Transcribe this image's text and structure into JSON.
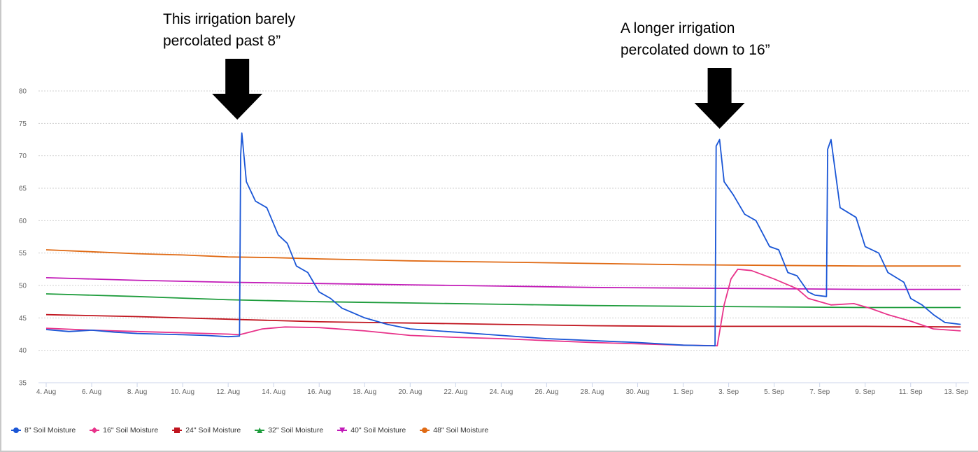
{
  "annotations": [
    {
      "line1": "This irrigation barely",
      "line2": "percolated past 8”"
    },
    {
      "line1": "A longer irrigation",
      "line2": "percolated down to 16”"
    }
  ],
  "chart_data": {
    "type": "line",
    "title": "",
    "xlabel": "",
    "ylabel": "",
    "x_unit": "days since 4. Aug",
    "xlim": [
      -0.3,
      40.3
    ],
    "ylim": [
      35,
      80
    ],
    "yticks": [
      35,
      40,
      45,
      50,
      55,
      60,
      65,
      70,
      75,
      80
    ],
    "xticks": [
      {
        "x": 0,
        "label": "4. Aug"
      },
      {
        "x": 2,
        "label": "6. Aug"
      },
      {
        "x": 4,
        "label": "8. Aug"
      },
      {
        "x": 6,
        "label": "10. Aug"
      },
      {
        "x": 8,
        "label": "12. Aug"
      },
      {
        "x": 10,
        "label": "14. Aug"
      },
      {
        "x": 12,
        "label": "16. Aug"
      },
      {
        "x": 14,
        "label": "18. Aug"
      },
      {
        "x": 16,
        "label": "20. Aug"
      },
      {
        "x": 18,
        "label": "22. Aug"
      },
      {
        "x": 20,
        "label": "24. Aug"
      },
      {
        "x": 22,
        "label": "26. Aug"
      },
      {
        "x": 24,
        "label": "28. Aug"
      },
      {
        "x": 26,
        "label": "30. Aug"
      },
      {
        "x": 28,
        "label": "1. Sep"
      },
      {
        "x": 30,
        "label": "3. Sep"
      },
      {
        "x": 32,
        "label": "5. Sep"
      },
      {
        "x": 34,
        "label": "7. Sep"
      },
      {
        "x": 36,
        "label": "9. Sep"
      },
      {
        "x": 38,
        "label": "11. Sep"
      },
      {
        "x": 40,
        "label": "13. Sep"
      }
    ],
    "grid": true,
    "legend_position": "bottom-left",
    "arrows_at_x": [
      8.4,
      29.6
    ],
    "series": [
      {
        "name": "8\" Soil Moisture",
        "color": "#1a56d6",
        "marker": "circle",
        "x": [
          0,
          1,
          2,
          3,
          4,
          5,
          6,
          7,
          8,
          8.5,
          8.55,
          8.6,
          8.8,
          9.2,
          9.7,
          10.2,
          10.6,
          11,
          11.5,
          12,
          12.5,
          13,
          14,
          15,
          16,
          18,
          20,
          22,
          24,
          26,
          28,
          29.4,
          29.45,
          29.6,
          29.8,
          30.2,
          30.7,
          31.2,
          31.8,
          32.2,
          32.6,
          33,
          33.5,
          33.8,
          34.3,
          34.35,
          34.5,
          34.9,
          35.6,
          36,
          36.6,
          37,
          37.7,
          38,
          38.5,
          39,
          39.5,
          40.2
        ],
        "y": [
          43.2,
          42.9,
          43.1,
          42.8,
          42.6,
          42.5,
          42.4,
          42.3,
          42.1,
          42.2,
          70,
          73.5,
          66,
          63,
          62,
          57.8,
          56.5,
          53,
          52,
          49,
          48,
          46.5,
          45,
          44,
          43.3,
          42.8,
          42.3,
          41.8,
          41.5,
          41.2,
          40.8,
          40.7,
          71.5,
          72.5,
          66,
          64,
          61,
          60,
          56,
          55.5,
          52,
          51.5,
          49,
          48.5,
          48.3,
          71,
          72.5,
          62,
          60.5,
          56,
          55,
          52,
          50.5,
          48,
          47,
          45.5,
          44.3,
          44
        ]
      },
      {
        "name": "16\" Soil Moisture",
        "color": "#e8338a",
        "marker": "diamond",
        "x": [
          0,
          2,
          4,
          6,
          8,
          8.5,
          9.5,
          10.5,
          12,
          14,
          16,
          18,
          20,
          22,
          24,
          26,
          28,
          29.5,
          29.8,
          30.1,
          30.4,
          31,
          32,
          33,
          33.5,
          34.5,
          35.5,
          36.2,
          37,
          38,
          39,
          40.2
        ],
        "y": [
          43.4,
          43.1,
          42.9,
          42.7,
          42.5,
          42.4,
          43.3,
          43.6,
          43.5,
          43,
          42.3,
          42,
          41.8,
          41.5,
          41.2,
          41,
          40.8,
          40.7,
          47,
          51,
          52.5,
          52.3,
          51,
          49.5,
          48,
          47,
          47.2,
          46.5,
          45.5,
          44.5,
          43.3,
          43
        ]
      },
      {
        "name": "24\" Soil Moisture",
        "color": "#c0141e",
        "marker": "square",
        "x": [
          0,
          4,
          8,
          12,
          16,
          20,
          24,
          28,
          32,
          36,
          40.2
        ],
        "y": [
          45.5,
          45.2,
          44.8,
          44.4,
          44.2,
          44,
          43.8,
          43.7,
          43.7,
          43.7,
          43.6
        ]
      },
      {
        "name": "32\" Soil Moisture",
        "color": "#1e9c3c",
        "marker": "triangle",
        "x": [
          0,
          4,
          8,
          12,
          16,
          20,
          24,
          28,
          32,
          36,
          40.2
        ],
        "y": [
          48.7,
          48.3,
          47.8,
          47.5,
          47.3,
          47.1,
          46.9,
          46.8,
          46.7,
          46.6,
          46.6
        ]
      },
      {
        "name": "40\" Soil Moisture",
        "color": "#c21bb8",
        "marker": "triangle-down",
        "x": [
          0,
          4,
          8,
          12,
          16,
          20,
          24,
          28,
          32,
          36,
          40.2
        ],
        "y": [
          51.2,
          50.8,
          50.5,
          50.3,
          50.1,
          49.9,
          49.7,
          49.6,
          49.5,
          49.4,
          49.4
        ]
      },
      {
        "name": "48\" Soil Moisture",
        "color": "#e06a14",
        "marker": "circle",
        "x": [
          0,
          2,
          4,
          6,
          8,
          10,
          12,
          16,
          20,
          24,
          28,
          32,
          36,
          40.2
        ],
        "y": [
          55.5,
          55.2,
          54.9,
          54.7,
          54.4,
          54.3,
          54.1,
          53.8,
          53.6,
          53.4,
          53.2,
          53.1,
          53.0,
          53.0
        ]
      }
    ]
  }
}
